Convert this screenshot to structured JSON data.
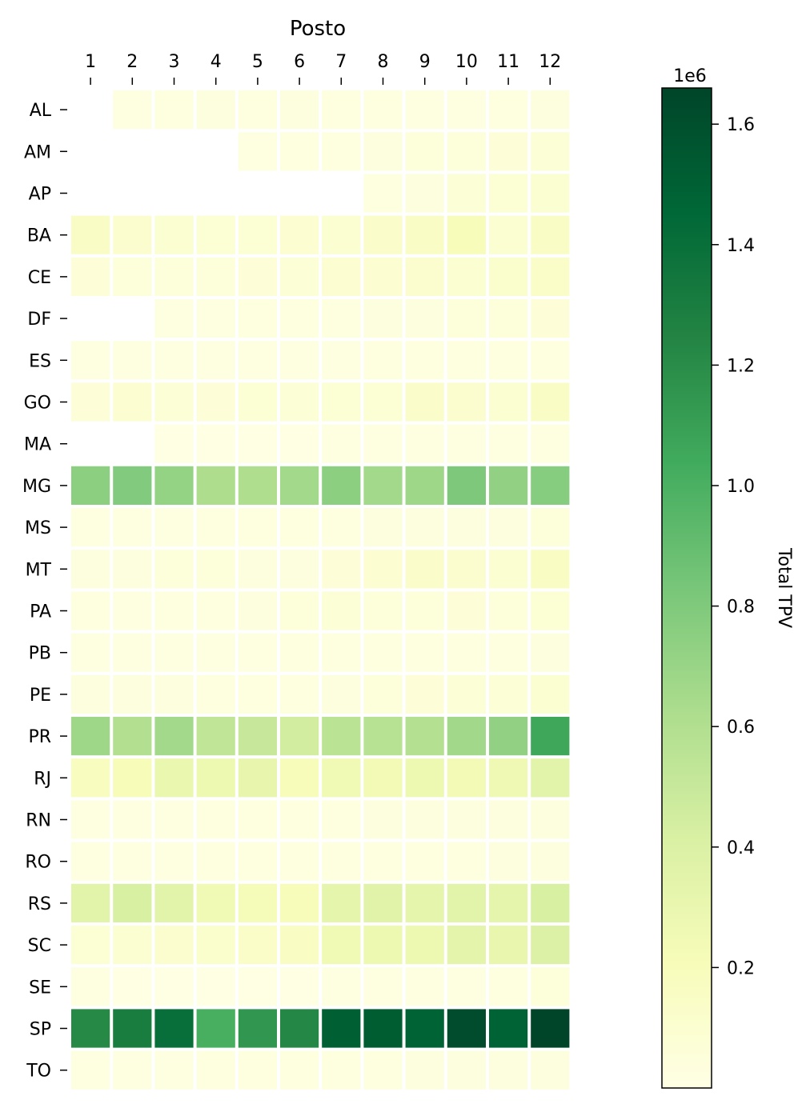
{
  "chart_data": {
    "type": "heatmap",
    "title": "",
    "xlabel": "Posto",
    "ylabel": "",
    "x_categories": [
      "1",
      "2",
      "3",
      "4",
      "5",
      "6",
      "7",
      "8",
      "9",
      "10",
      "11",
      "12"
    ],
    "y_categories": [
      "AL",
      "AM",
      "AP",
      "BA",
      "CE",
      "DF",
      "ES",
      "GO",
      "MA",
      "MG",
      "MS",
      "MT",
      "PA",
      "PB",
      "PE",
      "PR",
      "RJ",
      "RN",
      "RO",
      "RS",
      "SC",
      "SE",
      "SP",
      "TO"
    ],
    "values": [
      [
        null,
        0.02,
        0.03,
        0.04,
        0.03,
        0.04,
        0.03,
        0.03,
        0.02,
        0.02,
        0.03,
        0.04
      ],
      [
        null,
        null,
        null,
        null,
        0.02,
        0.03,
        0.03,
        0.04,
        0.05,
        0.05,
        0.06,
        0.07
      ],
      [
        null,
        null,
        null,
        null,
        null,
        null,
        null,
        0.03,
        0.04,
        0.07,
        0.08,
        0.1
      ],
      [
        0.15,
        0.11,
        0.1,
        0.08,
        0.08,
        0.09,
        0.1,
        0.13,
        0.15,
        0.2,
        0.1,
        0.15
      ],
      [
        0.06,
        0.05,
        0.05,
        0.05,
        0.06,
        0.07,
        0.09,
        0.09,
        0.11,
        0.1,
        0.12,
        0.14
      ],
      [
        null,
        null,
        0.02,
        0.02,
        0.03,
        0.03,
        0.03,
        0.04,
        0.04,
        0.05,
        0.05,
        0.06
      ],
      [
        0.02,
        0.02,
        0.02,
        0.02,
        0.02,
        0.02,
        0.02,
        0.03,
        0.03,
        0.03,
        0.03,
        0.03
      ],
      [
        0.06,
        0.09,
        0.07,
        0.06,
        0.08,
        0.07,
        0.08,
        0.08,
        0.13,
        0.11,
        0.1,
        0.15
      ],
      [
        null,
        null,
        0.01,
        0.01,
        0.01,
        0.01,
        0.02,
        0.02,
        0.02,
        0.02,
        0.02,
        0.02
      ],
      [
        0.75,
        0.79,
        0.72,
        0.62,
        0.61,
        0.66,
        0.75,
        0.66,
        0.68,
        0.81,
        0.73,
        0.77
      ],
      [
        0.02,
        0.02,
        0.02,
        0.03,
        0.03,
        0.03,
        0.03,
        0.04,
        0.04,
        0.04,
        0.04,
        0.05
      ],
      [
        0.04,
        0.04,
        0.05,
        0.05,
        0.04,
        0.04,
        0.06,
        0.09,
        0.13,
        0.11,
        0.1,
        0.16
      ],
      [
        0.03,
        0.02,
        0.03,
        0.03,
        0.04,
        0.05,
        0.07,
        0.05,
        0.05,
        0.06,
        0.05,
        0.08
      ],
      [
        0.02,
        0.02,
        0.02,
        0.02,
        0.02,
        0.03,
        0.03,
        0.03,
        0.03,
        0.03,
        0.03,
        0.04
      ],
      [
        0.04,
        0.04,
        0.04,
        0.03,
        0.03,
        0.03,
        0.04,
        0.05,
        0.06,
        0.07,
        0.07,
        0.1
      ],
      [
        0.68,
        0.6,
        0.66,
        0.53,
        0.5,
        0.45,
        0.56,
        0.57,
        0.59,
        0.67,
        0.73,
        1.06
      ],
      [
        0.18,
        0.21,
        0.3,
        0.28,
        0.32,
        0.2,
        0.25,
        0.24,
        0.28,
        0.24,
        0.26,
        0.35
      ],
      [
        0.02,
        0.02,
        0.02,
        0.03,
        0.03,
        0.03,
        0.03,
        0.04,
        0.04,
        0.04,
        0.04,
        0.04
      ],
      [
        0.02,
        0.02,
        0.02,
        0.03,
        0.03,
        0.03,
        0.03,
        0.03,
        0.03,
        0.03,
        0.04,
        0.04
      ],
      [
        0.35,
        0.42,
        0.35,
        0.25,
        0.22,
        0.2,
        0.33,
        0.37,
        0.33,
        0.35,
        0.33,
        0.42
      ],
      [
        0.08,
        0.1,
        0.11,
        0.12,
        0.14,
        0.16,
        0.25,
        0.28,
        0.28,
        0.34,
        0.31,
        0.39
      ],
      [
        0.02,
        0.01,
        0.01,
        0.01,
        0.01,
        0.01,
        0.02,
        0.02,
        0.02,
        0.02,
        0.03,
        0.05
      ],
      [
        1.22,
        1.3,
        1.4,
        1.01,
        1.15,
        1.23,
        1.5,
        1.52,
        1.48,
        1.62,
        1.48,
        1.66
      ],
      [
        0.02,
        0.02,
        0.02,
        0.03,
        0.03,
        0.03,
        0.03,
        0.03,
        0.04,
        0.04,
        0.04,
        0.04
      ]
    ],
    "colorbar": {
      "label": "Total TPV",
      "multiplier_label": "1e6",
      "min": 0.0,
      "max": 1.66,
      "ticks": [
        0.2,
        0.4,
        0.6,
        0.8,
        1.0,
        1.2,
        1.4,
        1.6
      ],
      "tick_labels": [
        "0.2",
        "0.4",
        "0.6",
        "0.8",
        "1.0",
        "1.2",
        "1.4",
        "1.6"
      ],
      "colormap": "YlGn",
      "colormap_stops": [
        "#ffffe5",
        "#f7fcb9",
        "#d9f0a3",
        "#addd8e",
        "#78c679",
        "#41ab5d",
        "#238443",
        "#006837",
        "#004529"
      ]
    }
  }
}
